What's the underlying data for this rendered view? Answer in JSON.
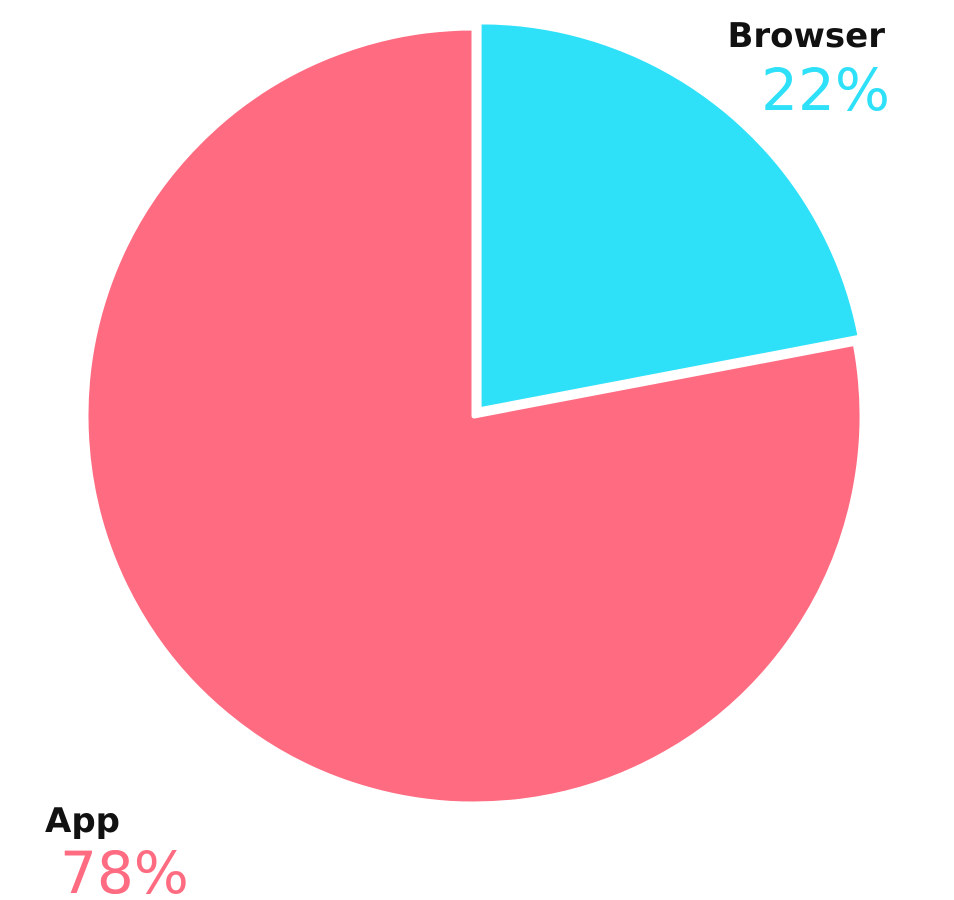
{
  "chart_data": {
    "type": "pie",
    "categories": [
      "Browser",
      "App"
    ],
    "values": [
      22,
      78
    ],
    "value_labels": [
      "22%",
      "78%"
    ],
    "colors": [
      "#2ee0f8",
      "#ff6b81"
    ]
  }
}
